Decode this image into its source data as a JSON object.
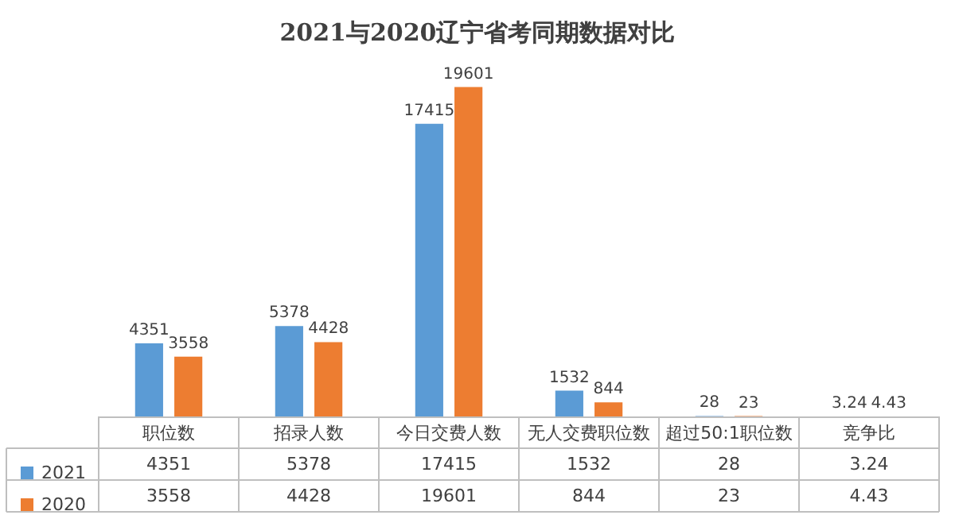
{
  "chart_data": {
    "type": "bar",
    "title": "2021与2020辽宁省考同期数据对比",
    "categories": [
      "职位数",
      "招录人数",
      "今日交费人数",
      "无人交费职位数",
      "超过50:1职位数",
      "竞争比"
    ],
    "series": [
      {
        "name": "2021",
        "color": "#5b9bd5",
        "values": [
          4351,
          5378,
          17415,
          1532,
          28,
          3.24
        ],
        "value_labels": [
          "4351",
          "5378",
          "17415",
          "1532",
          "28",
          "3.24"
        ]
      },
      {
        "name": "2020",
        "color": "#ed7d31",
        "values": [
          3558,
          4428,
          19601,
          844,
          23,
          4.43
        ],
        "value_labels": [
          "3558",
          "4428",
          "19601",
          "844",
          "23",
          "4.43"
        ]
      }
    ],
    "annotations": [
      "4351",
      "5378",
      "17415",
      "1532",
      "28",
      "3.24",
      "3558",
      "4428",
      "19601",
      "844",
      "23",
      "4.43"
    ],
    "legend": "bottom"
  }
}
